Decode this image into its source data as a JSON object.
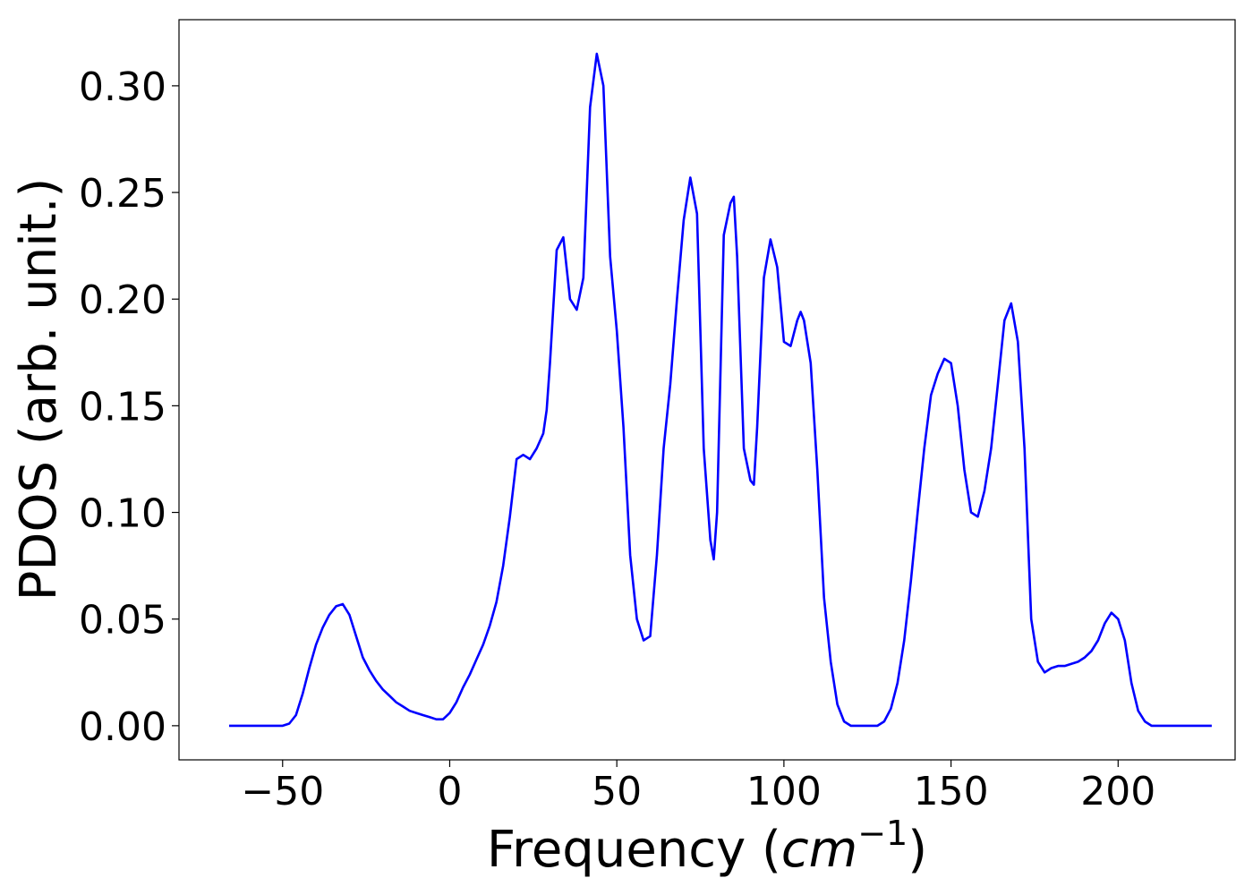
{
  "chart_data": {
    "type": "line",
    "title": "",
    "xlabel": "Frequency (",
    "xlabel_math": "cm",
    "xlabel_sup": "−1",
    "xlabel_close": ")",
    "ylabel": "PDOS (arb. unit.)",
    "xlim": [
      -81,
      235
    ],
    "ylim": [
      -0.016,
      0.331
    ],
    "xticks": [
      {
        "value": -50,
        "label": "−50"
      },
      {
        "value": 0,
        "label": "0"
      },
      {
        "value": 50,
        "label": "50"
      },
      {
        "value": 100,
        "label": "100"
      },
      {
        "value": 150,
        "label": "150"
      },
      {
        "value": 200,
        "label": "200"
      }
    ],
    "yticks": [
      {
        "value": 0.0,
        "label": "0.00"
      },
      {
        "value": 0.05,
        "label": "0.05"
      },
      {
        "value": 0.1,
        "label": "0.10"
      },
      {
        "value": 0.15,
        "label": "0.15"
      },
      {
        "value": 0.2,
        "label": "0.20"
      },
      {
        "value": 0.25,
        "label": "0.25"
      },
      {
        "value": 0.3,
        "label": "0.30"
      }
    ],
    "grid": false,
    "legend": "none",
    "series": [
      {
        "color": "#0000ff",
        "x": [
          -66,
          -50,
          -48,
          -46,
          -44,
          -42,
          -40,
          -38,
          -36,
          -34,
          -32,
          -30,
          -28,
          -26,
          -24,
          -22,
          -20,
          -18,
          -16,
          -14,
          -12,
          -10,
          -8,
          -6,
          -4,
          -2,
          0,
          2,
          4,
          6,
          8,
          10,
          12,
          14,
          16,
          18,
          20,
          22,
          24,
          26,
          28,
          29,
          30,
          32,
          34,
          36,
          38,
          40,
          42,
          44,
          46,
          48,
          50,
          52,
          54,
          56,
          58,
          60,
          62,
          64,
          66,
          68,
          70,
          72,
          74,
          76,
          78,
          79,
          80,
          82,
          84,
          85,
          86,
          88,
          90,
          91,
          92,
          94,
          96,
          98,
          100,
          102,
          104,
          105,
          106,
          108,
          110,
          112,
          114,
          116,
          118,
          120,
          122,
          124,
          126,
          128,
          130,
          132,
          134,
          136,
          138,
          140,
          142,
          144,
          146,
          148,
          150,
          152,
          154,
          156,
          158,
          160,
          162,
          164,
          166,
          168,
          170,
          172,
          174,
          176,
          178,
          180,
          182,
          184,
          186,
          188,
          190,
          192,
          194,
          196,
          198,
          200,
          202,
          204,
          206,
          208,
          210,
          212,
          220,
          228
        ],
        "y": [
          0.0,
          0.0,
          0.001,
          0.005,
          0.015,
          0.027,
          0.038,
          0.046,
          0.052,
          0.056,
          0.057,
          0.052,
          0.042,
          0.032,
          0.026,
          0.021,
          0.017,
          0.014,
          0.011,
          0.009,
          0.007,
          0.006,
          0.005,
          0.004,
          0.003,
          0.003,
          0.006,
          0.011,
          0.018,
          0.024,
          0.031,
          0.038,
          0.047,
          0.058,
          0.075,
          0.098,
          0.125,
          0.127,
          0.125,
          0.13,
          0.137,
          0.148,
          0.17,
          0.223,
          0.229,
          0.2,
          0.195,
          0.21,
          0.29,
          0.315,
          0.3,
          0.22,
          0.185,
          0.14,
          0.08,
          0.05,
          0.04,
          0.042,
          0.08,
          0.13,
          0.16,
          0.2,
          0.237,
          0.257,
          0.24,
          0.13,
          0.087,
          0.078,
          0.1,
          0.23,
          0.245,
          0.248,
          0.22,
          0.13,
          0.115,
          0.113,
          0.14,
          0.21,
          0.228,
          0.215,
          0.18,
          0.178,
          0.19,
          0.194,
          0.19,
          0.17,
          0.12,
          0.06,
          0.03,
          0.01,
          0.002,
          0.0,
          0.0,
          0.0,
          0.0,
          0.0,
          0.002,
          0.008,
          0.02,
          0.04,
          0.068,
          0.1,
          0.13,
          0.155,
          0.165,
          0.172,
          0.17,
          0.15,
          0.12,
          0.1,
          0.098,
          0.11,
          0.13,
          0.16,
          0.19,
          0.198,
          0.18,
          0.13,
          0.05,
          0.03,
          0.025,
          0.027,
          0.028,
          0.028,
          0.029,
          0.03,
          0.032,
          0.035,
          0.04,
          0.048,
          0.053,
          0.05,
          0.04,
          0.02,
          0.007,
          0.002,
          0.0,
          0.0,
          0.0,
          0.0
        ]
      }
    ]
  }
}
